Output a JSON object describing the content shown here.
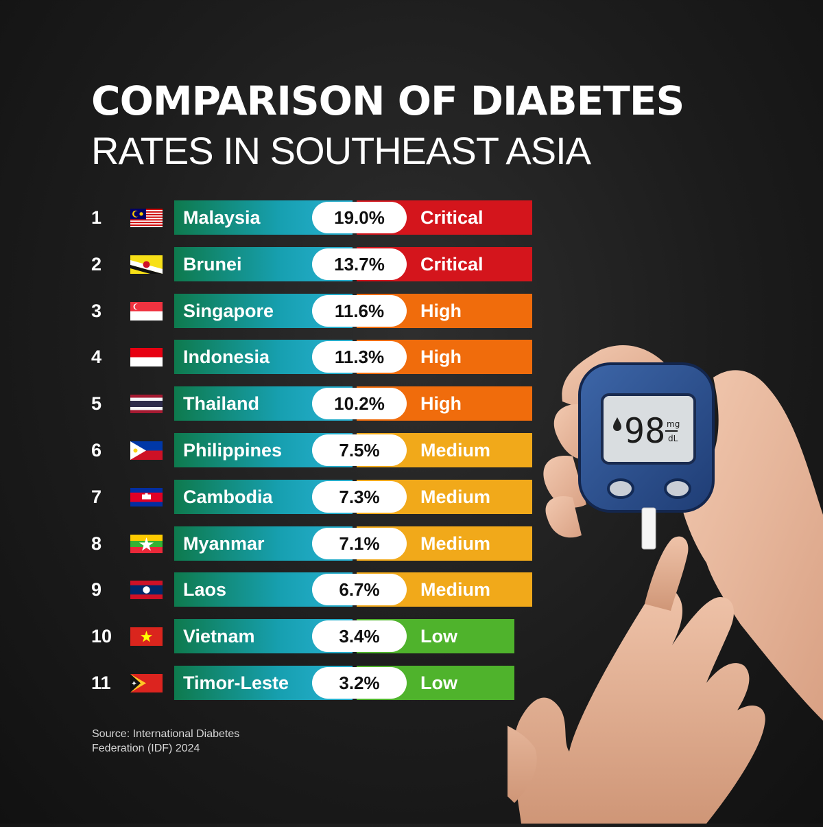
{
  "title_line1": "COMPARISON OF DIABETES",
  "title_line2": "RATES IN SOUTHEAST ASIA",
  "source_line1": "Source: International Diabetes",
  "source_line2": "Federation (IDF) 2024",
  "meter_reading": "98",
  "meter_unit_top": "mg",
  "meter_unit_bottom": "dL",
  "level_colors": {
    "Critical": "#d4151c",
    "High": "#f06c0c",
    "Medium": "#f1a91a",
    "Low": "#4fb32c"
  },
  "chart_data": {
    "type": "table",
    "unit": "%",
    "rows": [
      {
        "rank": "1",
        "country": "Malaysia",
        "flag": "malaysia-flag-icon",
        "rate": 19.0,
        "rate_label": "19.0%",
        "level": "Critical"
      },
      {
        "rank": "2",
        "country": "Brunei",
        "flag": "brunei-flag-icon",
        "rate": 13.7,
        "rate_label": "13.7%",
        "level": "Critical"
      },
      {
        "rank": "3",
        "country": "Singapore",
        "flag": "singapore-flag-icon",
        "rate": 11.6,
        "rate_label": "11.6%",
        "level": "High"
      },
      {
        "rank": "4",
        "country": "Indonesia",
        "flag": "indonesia-flag-icon",
        "rate": 11.3,
        "rate_label": "11.3%",
        "level": "High"
      },
      {
        "rank": "5",
        "country": "Thailand",
        "flag": "thailand-flag-icon",
        "rate": 10.2,
        "rate_label": "10.2%",
        "level": "High"
      },
      {
        "rank": "6",
        "country": "Philippines",
        "flag": "philippines-flag-icon",
        "rate": 7.5,
        "rate_label": "7.5%",
        "level": "Medium"
      },
      {
        "rank": "7",
        "country": "Cambodia",
        "flag": "cambodia-flag-icon",
        "rate": 7.3,
        "rate_label": "7.3%",
        "level": "Medium"
      },
      {
        "rank": "8",
        "country": "Myanmar",
        "flag": "myanmar-flag-icon",
        "rate": 7.1,
        "rate_label": "7.1%",
        "level": "Medium"
      },
      {
        "rank": "9",
        "country": "Laos",
        "flag": "laos-flag-icon",
        "rate": 6.7,
        "rate_label": "6.7%",
        "level": "Medium"
      },
      {
        "rank": "10",
        "country": "Vietnam",
        "flag": "vietnam-flag-icon",
        "rate": 3.4,
        "rate_label": "3.4%",
        "level": "Low"
      },
      {
        "rank": "11",
        "country": "Timor-Leste",
        "flag": "timor-leste-flag-icon",
        "rate": 3.2,
        "rate_label": "3.2%",
        "level": "Low"
      }
    ]
  }
}
